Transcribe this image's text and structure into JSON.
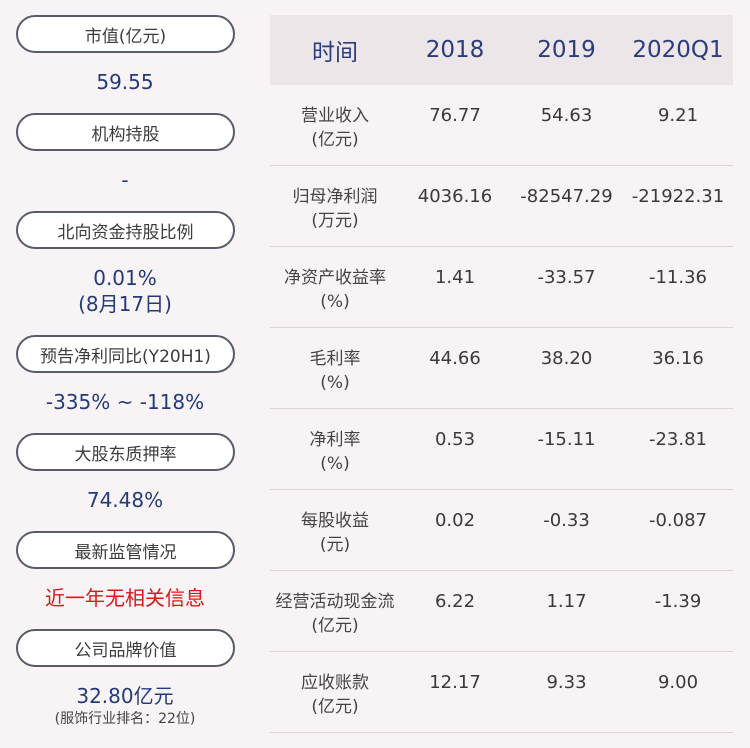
{
  "left": {
    "items": [
      {
        "label": "市值(亿元)",
        "value": "59.55"
      },
      {
        "label": "机构持股",
        "value": "-"
      },
      {
        "label": "北向资金持股比例",
        "value": "0.01%",
        "value2": "(8月17日)"
      },
      {
        "label": "预告净利同比(Y20H1)",
        "value": "-335% ~ -118%"
      },
      {
        "label": "大股东质押率",
        "value": "74.48%"
      },
      {
        "label": "最新监管情况",
        "value": "近一年无相关信息"
      },
      {
        "label": "公司品牌价值",
        "value": "32.80亿元",
        "note": "(服饰行业排名：22位)"
      }
    ],
    "highlight_color": "#d7191b"
  },
  "table": {
    "headers": [
      "时间",
      "2018",
      "2019",
      "2020Q1"
    ],
    "rows": [
      {
        "label": "营业收入",
        "unit": "(亿元)",
        "values": [
          "76.77",
          "54.63",
          "9.21"
        ]
      },
      {
        "label": "归母净利润",
        "unit": "(万元)",
        "values": [
          "4036.16",
          "-82547.29",
          "-21922.31"
        ]
      },
      {
        "label": "净资产收益率",
        "unit": "(%)",
        "values": [
          "1.41",
          "-33.57",
          "-11.36"
        ]
      },
      {
        "label": "毛利率",
        "unit": "(%)",
        "values": [
          "44.66",
          "38.20",
          "36.16"
        ]
      },
      {
        "label": "净利率",
        "unit": "(%)",
        "values": [
          "0.53",
          "-15.11",
          "-23.81"
        ]
      },
      {
        "label": "每股收益",
        "unit": "(元)",
        "values": [
          "0.02",
          "-0.33",
          "-0.087"
        ]
      },
      {
        "label": "经营活动现金流",
        "unit": "(亿元)",
        "values": [
          "6.22",
          "1.17",
          "-1.39"
        ]
      },
      {
        "label": "应收账款",
        "unit": "(亿元)",
        "values": [
          "12.17",
          "9.33",
          "9.00"
        ]
      }
    ]
  }
}
